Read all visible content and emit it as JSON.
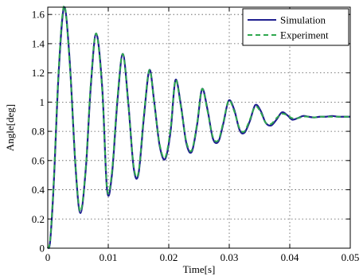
{
  "chart_data": {
    "type": "line",
    "title": "",
    "xlabel": "Time[s]",
    "ylabel": "Angle[deg]",
    "xlim": [
      0,
      0.05
    ],
    "ylim": [
      0,
      1.65
    ],
    "xticks": [
      0,
      0.01,
      0.02,
      0.03,
      0.04,
      0.05
    ],
    "xtick_labels": [
      "0",
      "0.01",
      "0.02",
      "0.03",
      "0.04",
      "0.05"
    ],
    "yticks": [
      0,
      0.2,
      0.4,
      0.6,
      0.8,
      1.0,
      1.2,
      1.4,
      1.6
    ],
    "ytick_labels": [
      "0",
      "0.2",
      "0.4",
      "0.6",
      "0.8",
      "1",
      "1.2",
      "1.4",
      "1.6"
    ],
    "grid": true,
    "legend_position": "top-right",
    "series": [
      {
        "name": "Simulation",
        "color": "#1f1f8f",
        "style": "solid",
        "x": [
          0,
          0.0004,
          0.001,
          0.0018,
          0.0027,
          0.0036,
          0.0046,
          0.0054,
          0.0063,
          0.0071,
          0.008,
          0.009,
          0.0098,
          0.0106,
          0.0115,
          0.0124,
          0.0133,
          0.0142,
          0.015,
          0.0159,
          0.0168,
          0.0176,
          0.0185,
          0.0194,
          0.0203,
          0.0211,
          0.022,
          0.0229,
          0.0238,
          0.0247,
          0.0255,
          0.0264,
          0.0273,
          0.0282,
          0.029,
          0.0299,
          0.0308,
          0.0317,
          0.0325,
          0.0334,
          0.0343,
          0.0352,
          0.036,
          0.0369,
          0.0378,
          0.0387,
          0.0396,
          0.0404,
          0.0413,
          0.0422,
          0.0431,
          0.044,
          0.045,
          0.046,
          0.047,
          0.048,
          0.049,
          0.05
        ],
        "y": [
          0.0,
          0.05,
          0.45,
          1.2,
          1.65,
          1.3,
          0.55,
          0.24,
          0.55,
          1.1,
          1.47,
          1.1,
          0.4,
          0.5,
          1.0,
          1.33,
          1.0,
          0.55,
          0.51,
          0.9,
          1.22,
          1.0,
          0.7,
          0.61,
          0.8,
          1.15,
          0.98,
          0.72,
          0.66,
          0.85,
          1.09,
          0.95,
          0.75,
          0.73,
          0.85,
          1.01,
          0.95,
          0.81,
          0.79,
          0.87,
          0.98,
          0.94,
          0.86,
          0.84,
          0.88,
          0.93,
          0.91,
          0.88,
          0.89,
          0.905,
          0.9,
          0.895,
          0.9,
          0.9,
          0.905,
          0.9,
          0.9,
          0.9
        ]
      },
      {
        "name": "Experiment",
        "color": "#2fa84f",
        "style": "dashed",
        "x": [
          0,
          0.0004,
          0.001,
          0.0018,
          0.0027,
          0.0036,
          0.0046,
          0.0054,
          0.0063,
          0.0071,
          0.008,
          0.009,
          0.0098,
          0.0106,
          0.0115,
          0.0124,
          0.0133,
          0.0142,
          0.015,
          0.0159,
          0.0168,
          0.0176,
          0.0185,
          0.0194,
          0.0203,
          0.0211,
          0.022,
          0.0229,
          0.0238,
          0.0247,
          0.0255,
          0.0264,
          0.0273,
          0.0282,
          0.029,
          0.0299,
          0.0308,
          0.0317,
          0.0325,
          0.0334,
          0.0343,
          0.0352,
          0.036,
          0.0369,
          0.0378,
          0.0387,
          0.0396,
          0.0404,
          0.0413,
          0.0422,
          0.0431,
          0.044,
          0.045,
          0.046,
          0.047,
          0.048,
          0.049,
          0.05
        ],
        "y": [
          0.0,
          0.06,
          0.47,
          1.22,
          1.66,
          1.28,
          0.56,
          0.25,
          0.56,
          1.12,
          1.47,
          1.08,
          0.41,
          0.52,
          1.02,
          1.33,
          0.99,
          0.56,
          0.52,
          0.92,
          1.22,
          0.99,
          0.71,
          0.62,
          0.82,
          1.15,
          0.97,
          0.73,
          0.67,
          0.86,
          1.09,
          0.94,
          0.76,
          0.74,
          0.86,
          1.01,
          0.94,
          0.82,
          0.8,
          0.88,
          0.97,
          0.93,
          0.86,
          0.85,
          0.89,
          0.92,
          0.91,
          0.89,
          0.89,
          0.9,
          0.9,
          0.895,
          0.9,
          0.9,
          0.9,
          0.9,
          0.9,
          0.9
        ]
      }
    ]
  }
}
